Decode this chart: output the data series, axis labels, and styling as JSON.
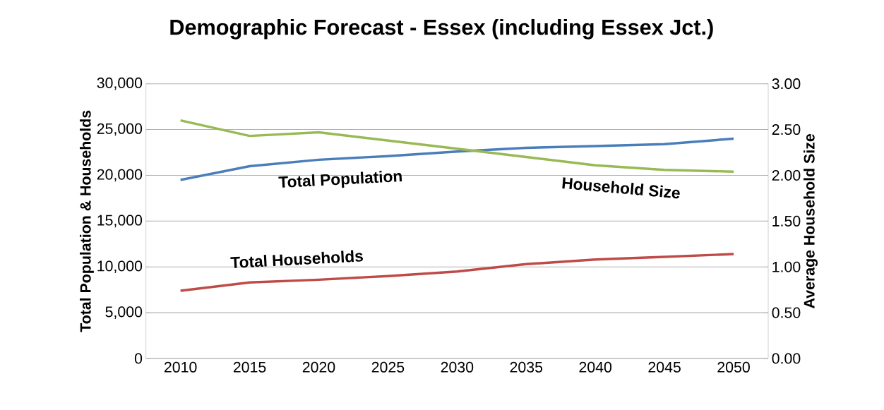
{
  "chart_data": {
    "type": "line",
    "title": "Demographic Forecast - Essex (including Essex Jct.)",
    "ylabel": "Total Population & Households",
    "y2label": "Average Household Size",
    "categories": [
      "2010",
      "2015",
      "2020",
      "2025",
      "2030",
      "2035",
      "2040",
      "2045",
      "2050"
    ],
    "series": [
      {
        "name": "Total Population",
        "color": "#4a7ebb",
        "values": [
          19500,
          21000,
          21700,
          22100,
          22600,
          23000,
          23200,
          23400,
          24000
        ]
      },
      {
        "name": "Total Households",
        "color": "#be4b48",
        "values": [
          7400,
          8300,
          8600,
          9000,
          9500,
          10300,
          10800,
          11100,
          11400
        ]
      },
      {
        "name": "Household Size",
        "color": "#98b954",
        "axis": "y2",
        "values": [
          2.6,
          2.43,
          2.47,
          2.38,
          2.29,
          2.2,
          2.11,
          2.06,
          2.04
        ]
      }
    ],
    "ylim": [
      0,
      30000
    ],
    "yticks": [
      0,
      {
        "value": 5000,
        "label": "5,000"
      },
      {
        "value": 10000,
        "label": "10,000"
      },
      {
        "value": 15000,
        "label": "15,000"
      },
      {
        "value": 20000,
        "label": "20,000"
      },
      {
        "value": 25000,
        "label": "25,000"
      },
      {
        "value": 30000,
        "label": "30,000"
      }
    ],
    "y2lim": [
      0,
      3
    ],
    "y2ticks": [
      {
        "value": 0,
        "label": "0.00"
      },
      {
        "value": 0.5,
        "label": "0.50"
      },
      {
        "value": 1,
        "label": "1.00"
      },
      {
        "value": 1.5,
        "label": "1.50"
      },
      {
        "value": 2,
        "label": "2.00"
      },
      {
        "value": 2.5,
        "label": "2.50"
      },
      {
        "value": 3,
        "label": "3.00"
      }
    ],
    "grid": "y",
    "marker": "none",
    "line_style": "solid"
  }
}
